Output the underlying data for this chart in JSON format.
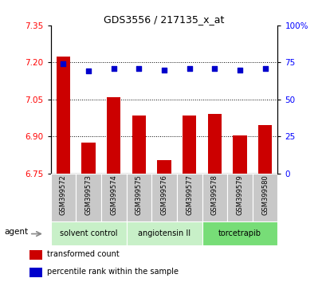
{
  "title": "GDS3556 / 217135_x_at",
  "categories": [
    "GSM399572",
    "GSM399573",
    "GSM399574",
    "GSM399575",
    "GSM399576",
    "GSM399577",
    "GSM399578",
    "GSM399579",
    "GSM399580"
  ],
  "bar_values": [
    7.225,
    6.875,
    7.06,
    6.985,
    6.805,
    6.985,
    6.99,
    6.905,
    6.945
  ],
  "dot_values": [
    74,
    69,
    71,
    71,
    70,
    71,
    71,
    70,
    71
  ],
  "ylim_left": [
    6.75,
    7.35
  ],
  "ylim_right": [
    0,
    100
  ],
  "yticks_left": [
    6.75,
    6.9,
    7.05,
    7.2,
    7.35
  ],
  "yticks_right": [
    0,
    25,
    50,
    75,
    100
  ],
  "bar_color": "#cc0000",
  "dot_color": "#0000cc",
  "groups": [
    {
      "label": "solvent control",
      "start": 0,
      "end": 3,
      "color": "#c8f0c8"
    },
    {
      "label": "angiotensin II",
      "start": 3,
      "end": 6,
      "color": "#c8f0c8"
    },
    {
      "label": "torcetrapib",
      "start": 6,
      "end": 9,
      "color": "#77dd77"
    }
  ],
  "group_row_label": "agent",
  "legend_bar_label": "transformed count",
  "legend_dot_label": "percentile rank within the sample",
  "bar_color_legend": "#cc0000",
  "dot_color_legend": "#0000cc",
  "bg_xticklabel": "#c8c8c8",
  "grid_vals": [
    6.9,
    7.05,
    7.2
  ]
}
